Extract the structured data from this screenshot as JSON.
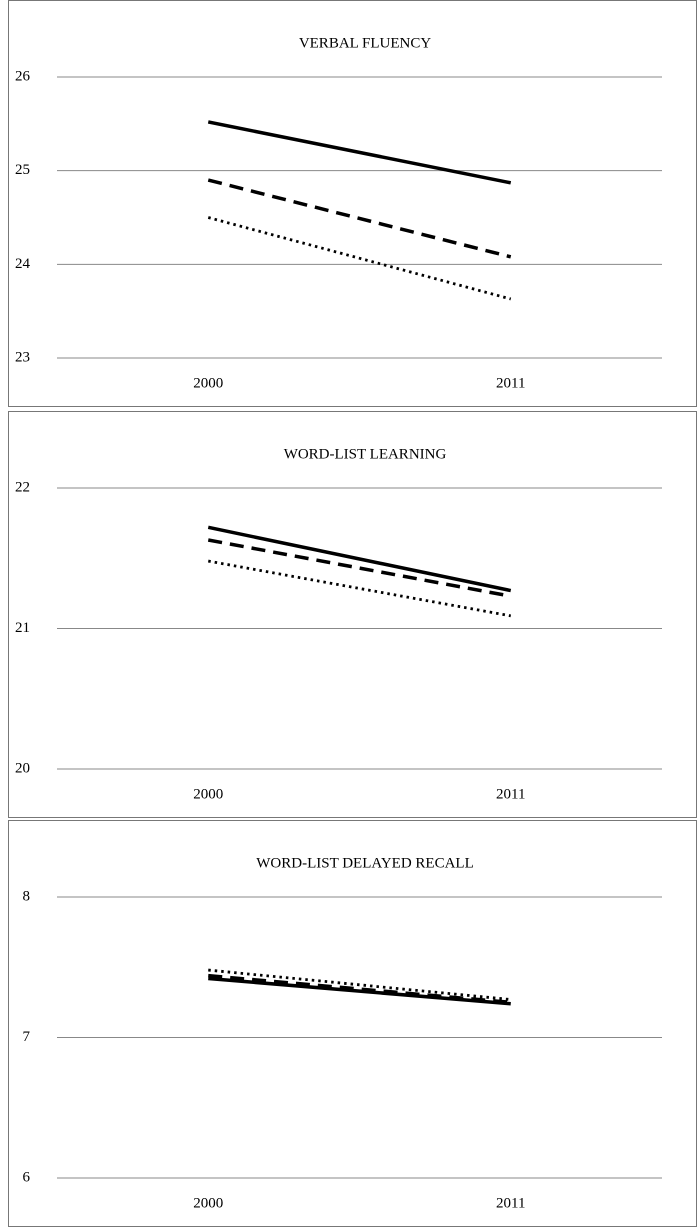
{
  "chart_data": [
    {
      "type": "line",
      "title": "VERBAL FLUENCY",
      "categories": [
        "2000",
        "2011"
      ],
      "series": [
        {
          "color": "#000000",
          "dash": "solid",
          "values": [
            25.52,
            24.87
          ]
        },
        {
          "color": "#000000",
          "dash": "dashed",
          "values": [
            24.9,
            24.08
          ]
        },
        {
          "color": "#000000",
          "dash": "dotted",
          "values": [
            24.5,
            23.63
          ]
        }
      ],
      "ylim": [
        23,
        26
      ],
      "yticks": [
        23,
        24,
        25,
        26
      ],
      "grid": true
    },
    {
      "type": "line",
      "title": "WORD-LIST LEARNING",
      "categories": [
        "2000",
        "2011"
      ],
      "series": [
        {
          "color": "#000000",
          "dash": "solid",
          "values": [
            21.72,
            21.27
          ]
        },
        {
          "color": "#000000",
          "dash": "dashed",
          "values": [
            21.63,
            21.23
          ]
        },
        {
          "color": "#000000",
          "dash": "dotted",
          "values": [
            21.48,
            21.09
          ]
        }
      ],
      "ylim": [
        20,
        22
      ],
      "yticks": [
        20,
        21,
        22
      ],
      "grid": true
    },
    {
      "type": "line",
      "title": "WORD-LIST DELAYED RECALL",
      "categories": [
        "2000",
        "2011"
      ],
      "series": [
        {
          "color": "#000000",
          "dash": "solid",
          "values": [
            7.42,
            7.24
          ]
        },
        {
          "color": "#000000",
          "dash": "dashed",
          "values": [
            7.44,
            7.25
          ]
        },
        {
          "color": "#000000",
          "dash": "dotted",
          "values": [
            7.48,
            7.27
          ]
        }
      ],
      "ylim": [
        6,
        8
      ],
      "yticks": [
        6,
        7,
        8
      ],
      "grid": true
    }
  ]
}
